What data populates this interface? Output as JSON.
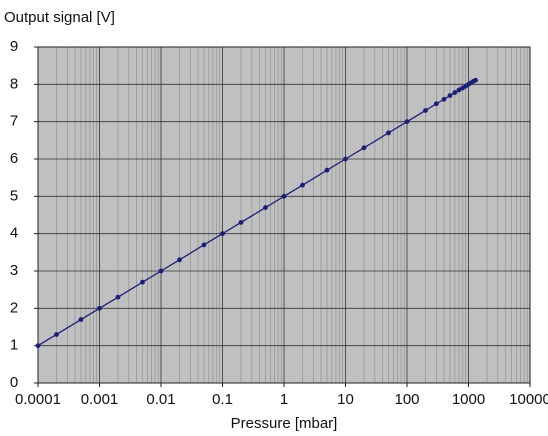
{
  "chart_data": {
    "type": "line",
    "title": "Output signal [V]",
    "x_label": "Pressure [mbar]",
    "x_scale": "log",
    "grid": true,
    "minor_grid": true,
    "background": "#c0c0c0",
    "xlim": [
      0.0001,
      10000
    ],
    "xticks": [
      0.0001,
      0.001,
      0.01,
      0.1,
      1,
      10,
      100,
      1000,
      10000
    ],
    "ylim": [
      0,
      9
    ],
    "yticks": [
      0,
      1,
      2,
      3,
      4,
      5,
      6,
      7,
      8,
      9
    ],
    "x": [
      0.0001,
      0.0002,
      0.0005,
      0.001,
      0.002,
      0.005,
      0.01,
      0.02,
      0.05,
      0.1,
      0.2,
      0.5,
      1,
      2,
      5,
      10,
      20,
      50,
      100,
      200,
      300,
      400,
      500,
      600,
      700,
      800,
      900,
      1000,
      1100,
      1200,
      1300
    ],
    "series": [
      {
        "color": "#1c1f78",
        "values": [
          1,
          1.3,
          1.7,
          2,
          2.3,
          2.7,
          3,
          3.3,
          3.7,
          4,
          4.3,
          4.7,
          5,
          5.3,
          5.7,
          6,
          6.3,
          6.7,
          7,
          7.3,
          7.48,
          7.6,
          7.7,
          7.78,
          7.85,
          7.9,
          7.95,
          8,
          8.04,
          8.08,
          8.11
        ]
      }
    ]
  }
}
